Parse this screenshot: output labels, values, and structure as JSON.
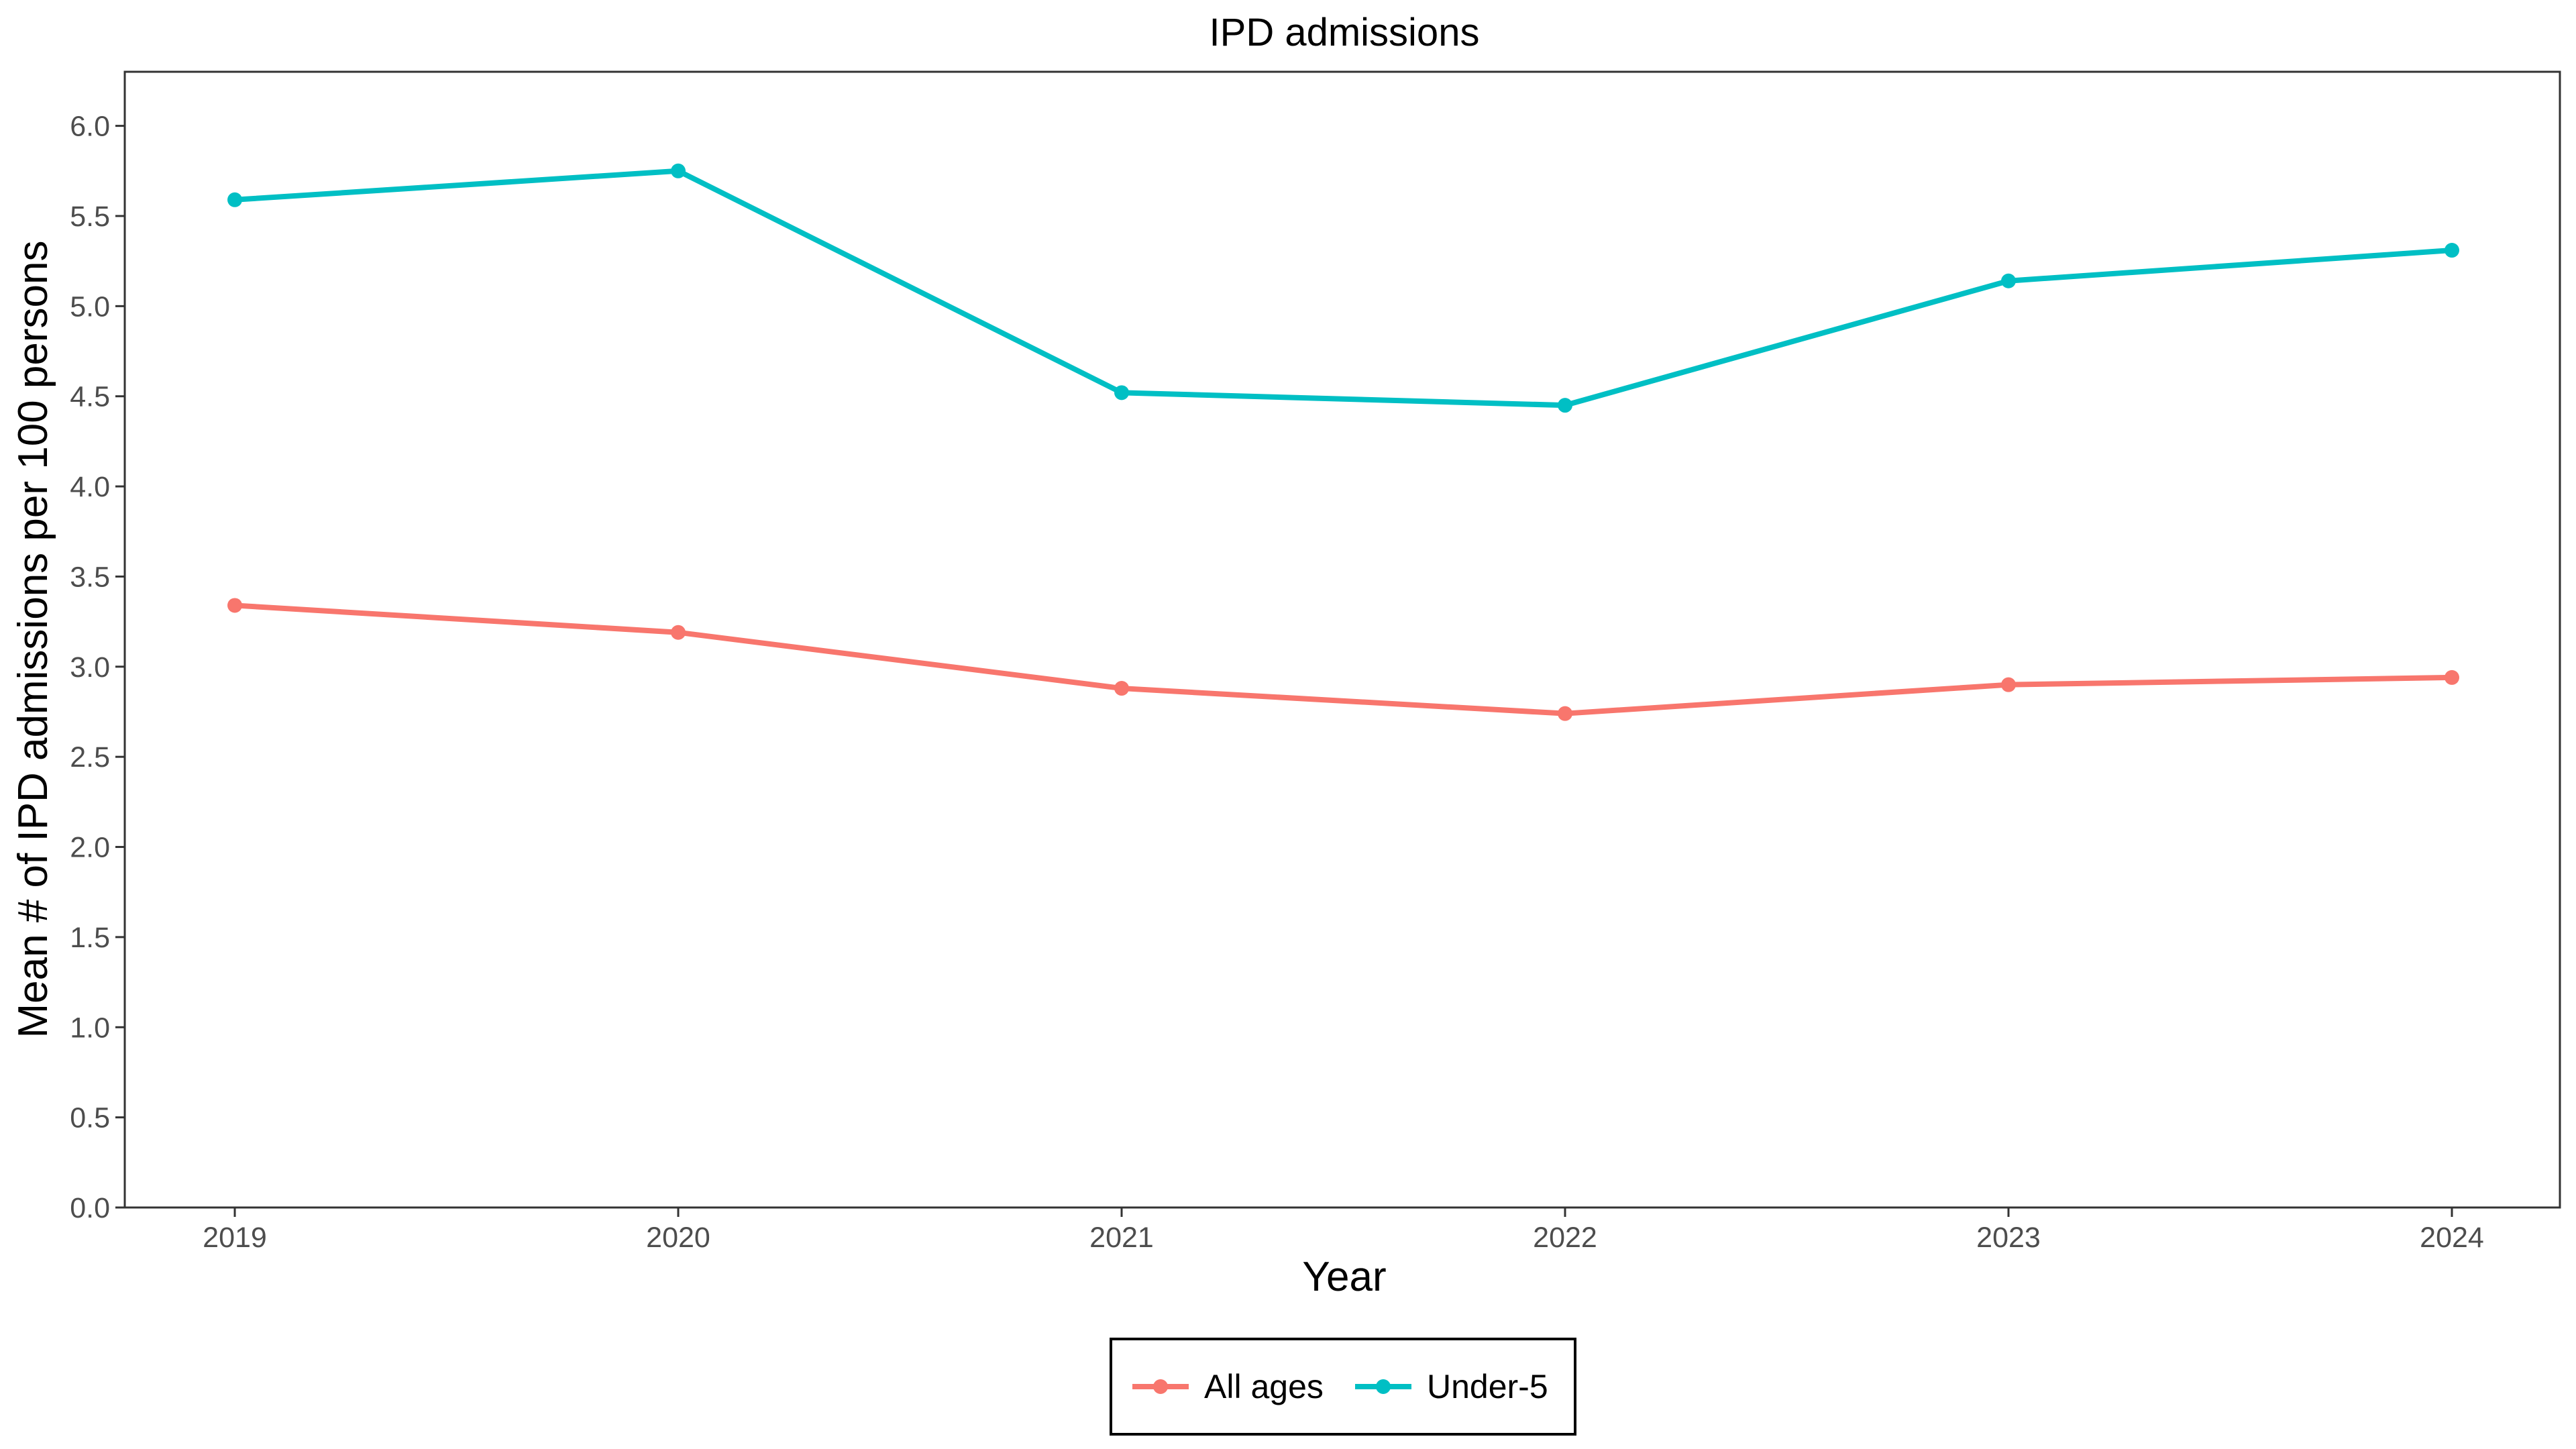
{
  "chart_data": {
    "type": "line",
    "title": "IPD admissions",
    "xlabel": "Year",
    "ylabel": "Mean # of IPD admissions per 100 persons",
    "x": [
      "2019",
      "2020",
      "2021",
      "2022",
      "2023",
      "2024"
    ],
    "ylim": [
      0,
      6.3
    ],
    "yticks": [
      "0.0",
      "0.5",
      "1.0",
      "1.5",
      "2.0",
      "2.5",
      "3.0",
      "3.5",
      "4.0",
      "4.5",
      "5.0",
      "5.5",
      "6.0"
    ],
    "grid": false,
    "legend_position": "bottom",
    "series": [
      {
        "name": "All ages",
        "color": "#F8766D",
        "values": [
          3.34,
          3.19,
          2.88,
          2.74,
          2.9,
          2.94
        ]
      },
      {
        "name": "Under-5",
        "color": "#00BFC4",
        "values": [
          5.59,
          5.75,
          4.52,
          4.45,
          5.14,
          5.31
        ]
      }
    ]
  }
}
